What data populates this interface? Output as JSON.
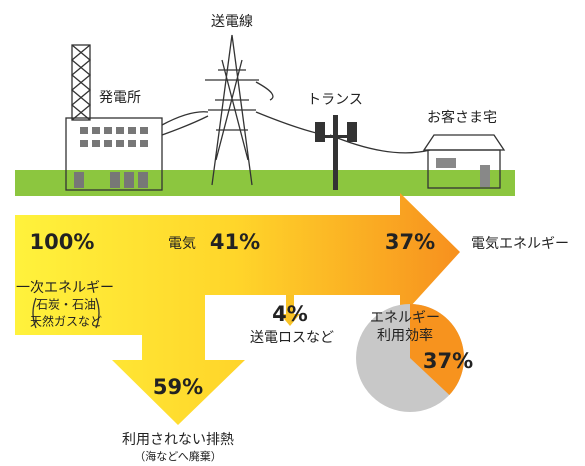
{
  "labels": {
    "plant": "発電所",
    "line": "送電線",
    "transformer": "トランス",
    "home": "お客さま宅"
  },
  "flow": {
    "input": {
      "value": "100%",
      "name": "一次エネルギー",
      "detail_1": "石炭・石油",
      "detail_2": "天然ガスなど"
    },
    "electric": {
      "name": "電気",
      "value": "41%"
    },
    "output": {
      "value": "37%",
      "name": "電気エネルギー"
    },
    "loss": {
      "value": "4%",
      "name": "送電ロスなど"
    },
    "waste": {
      "value": "59%",
      "name": "利用されない排熱",
      "note": "（海などへ廃棄）"
    }
  },
  "pie": {
    "title_1": "エネルギー",
    "title_2": "利用効率",
    "value": 37,
    "label": "37%",
    "color": "#f7931e",
    "rest_color": "#c8c8c8"
  }
}
